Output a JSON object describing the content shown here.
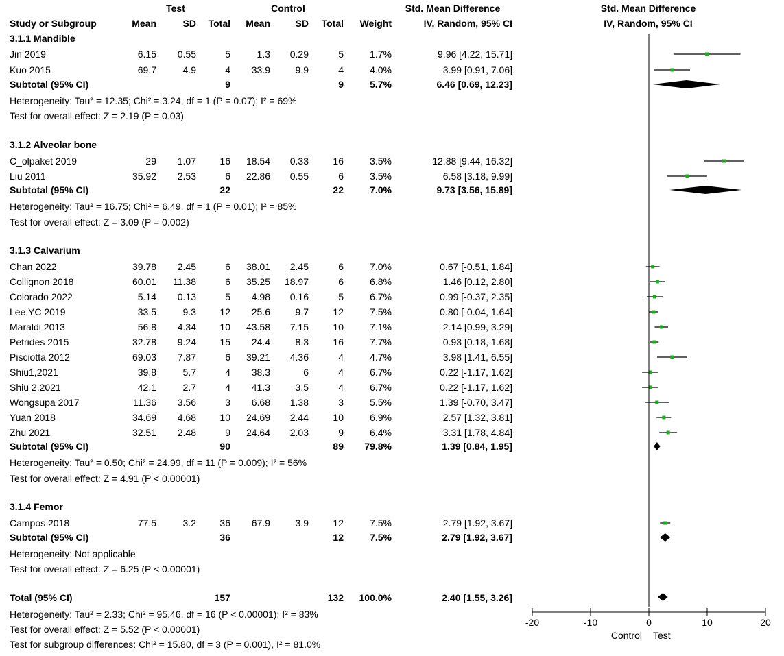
{
  "header": {
    "test": "Test",
    "control": "Control",
    "smd": "Std. Mean Difference",
    "smd_plot": "Std. Mean Difference",
    "cols": [
      "Study or Subgroup",
      "Mean",
      "SD",
      "Total",
      "Mean",
      "SD",
      "Total",
      "Weight",
      "IV, Random, 95% CI"
    ],
    "method_plot": "IV, Random, 95% CI"
  },
  "subgroups": [
    {
      "title": "3.1.1 Mandible",
      "studies": [
        {
          "name": "Jin 2019",
          "tm": "6.15",
          "tsd": "0.55",
          "tn": "5",
          "cm": "1.3",
          "csd": "0.29",
          "cn": "5",
          "w": "1.7%",
          "ci": "9.96 [4.22, 15.71]"
        },
        {
          "name": "Kuo 2015",
          "tm": "69.7",
          "tsd": "4.9",
          "tn": "4",
          "cm": "33.9",
          "csd": "9.9",
          "cn": "4",
          "w": "4.0%",
          "ci": "3.99 [0.91, 7.06]"
        }
      ],
      "subtotal": {
        "label": "Subtotal (95% CI)",
        "tn": "9",
        "cn": "9",
        "w": "5.7%",
        "ci": "6.46 [0.69, 12.23]"
      },
      "het": "Heterogeneity: Tau² = 12.35; Chi² = 3.24, df = 1 (P = 0.07); I² = 69%",
      "effect": "Test for overall effect: Z = 2.19 (P = 0.03)"
    },
    {
      "title": "3.1.2 Alveolar bone",
      "studies": [
        {
          "name": "C_olpaket 2019",
          "tm": "29",
          "tsd": "1.07",
          "tn": "16",
          "cm": "18.54",
          "csd": "0.33",
          "cn": "16",
          "w": "3.5%",
          "ci": "12.88 [9.44, 16.32]"
        },
        {
          "name": "Liu 2011",
          "tm": "35.92",
          "tsd": "2.53",
          "tn": "6",
          "cm": "22.86",
          "csd": "0.55",
          "cn": "6",
          "w": "3.5%",
          "ci": "6.58 [3.18, 9.99]"
        }
      ],
      "subtotal": {
        "label": "Subtotal (95% CI)",
        "tn": "22",
        "cn": "22",
        "w": "7.0%",
        "ci": "9.73 [3.56, 15.89]"
      },
      "het": "Heterogeneity: Tau² = 16.75; Chi² = 6.49, df = 1 (P = 0.01); I² = 85%",
      "effect": "Test for overall effect: Z = 3.09 (P = 0.002)"
    },
    {
      "title": "3.1.3 Calvarium",
      "studies": [
        {
          "name": "Chan 2022",
          "tm": "39.78",
          "tsd": "2.45",
          "tn": "6",
          "cm": "38.01",
          "csd": "2.45",
          "cn": "6",
          "w": "7.0%",
          "ci": "0.67 [-0.51, 1.84]"
        },
        {
          "name": "Collignon 2018",
          "tm": "60.01",
          "tsd": "11.38",
          "tn": "6",
          "cm": "35.25",
          "csd": "18.97",
          "cn": "6",
          "w": "6.8%",
          "ci": "1.46 [0.12, 2.80]"
        },
        {
          "name": "Colorado 2022",
          "tm": "5.14",
          "tsd": "0.13",
          "tn": "5",
          "cm": "4.98",
          "csd": "0.16",
          "cn": "5",
          "w": "6.7%",
          "ci": "0.99 [-0.37, 2.35]"
        },
        {
          "name": "Lee YC 2019",
          "tm": "33.5",
          "tsd": "9.3",
          "tn": "12",
          "cm": "25.6",
          "csd": "9.7",
          "cn": "12",
          "w": "7.5%",
          "ci": "0.80 [-0.04, 1.64]"
        },
        {
          "name": "Maraldi 2013",
          "tm": "56.8",
          "tsd": "4.34",
          "tn": "10",
          "cm": "43.58",
          "csd": "7.15",
          "cn": "10",
          "w": "7.1%",
          "ci": "2.14 [0.99, 3.29]"
        },
        {
          "name": "Petrides 2015",
          "tm": "32.78",
          "tsd": "9.24",
          "tn": "15",
          "cm": "24.4",
          "csd": "8.3",
          "cn": "16",
          "w": "7.7%",
          "ci": "0.93 [0.18, 1.68]"
        },
        {
          "name": "Pisciotta 2012",
          "tm": "69.03",
          "tsd": "7.87",
          "tn": "6",
          "cm": "39.21",
          "csd": "4.36",
          "cn": "4",
          "w": "4.7%",
          "ci": "3.98 [1.41, 6.55]"
        },
        {
          "name": "Shiu1,2021",
          "tm": "39.8",
          "tsd": "5.7",
          "tn": "4",
          "cm": "38.3",
          "csd": "6",
          "cn": "4",
          "w": "6.7%",
          "ci": "0.22 [-1.17, 1.62]"
        },
        {
          "name": "Shiu 2,2021",
          "tm": "42.1",
          "tsd": "2.7",
          "tn": "4",
          "cm": "41.3",
          "csd": "3.5",
          "cn": "4",
          "w": "6.7%",
          "ci": "0.22 [-1.17, 1.62]"
        },
        {
          "name": "Wongsupa 2017",
          "tm": "11.36",
          "tsd": "3.56",
          "tn": "3",
          "cm": "6.68",
          "csd": "1.38",
          "cn": "3",
          "w": "5.5%",
          "ci": "1.39 [-0.70, 3.47]"
        },
        {
          "name": "Yuan 2018",
          "tm": "34.69",
          "tsd": "4.68",
          "tn": "10",
          "cm": "24.69",
          "csd": "2.44",
          "cn": "10",
          "w": "6.9%",
          "ci": "2.57 [1.32, 3.81]"
        },
        {
          "name": "Zhu 2021",
          "tm": "32.51",
          "tsd": "2.48",
          "tn": "9",
          "cm": "24.64",
          "csd": "2.03",
          "cn": "9",
          "w": "6.4%",
          "ci": "3.31 [1.78, 4.84]"
        }
      ],
      "subtotal": {
        "label": "Subtotal (95% CI)",
        "tn": "90",
        "cn": "89",
        "w": "79.8%",
        "ci": "1.39 [0.84, 1.95]"
      },
      "het": "Heterogeneity: Tau² = 0.50; Chi² = 24.99, df = 11 (P = 0.009); I² = 56%",
      "effect": "Test for overall effect: Z = 4.91 (P < 0.00001)"
    },
    {
      "title": "3.1.4 Femor",
      "studies": [
        {
          "name": "Campos 2018",
          "tm": "77.5",
          "tsd": "3.2",
          "tn": "36",
          "cm": "67.9",
          "csd": "3.9",
          "cn": "12",
          "w": "7.5%",
          "ci": "2.79 [1.92, 3.67]"
        }
      ],
      "subtotal": {
        "label": "Subtotal (95% CI)",
        "tn": "36",
        "cn": "12",
        "w": "7.5%",
        "ci": "2.79 [1.92, 3.67]"
      },
      "het": "Heterogeneity: Not applicable",
      "effect": "Test for overall effect: Z = 6.25 (P < 0.00001)"
    }
  ],
  "total": {
    "label": "Total (95% CI)",
    "tn": "157",
    "cn": "132",
    "w": "100.0%",
    "ci": "2.40 [1.55, 3.26]"
  },
  "footer": [
    "Heterogeneity: Tau² = 2.33; Chi² = 95.46, df = 16 (P < 0.00001); I² = 83%",
    "Test for overall effect: Z = 5.52 (P < 0.00001)",
    "Test for subgroup differences: Chi² = 15.80, df = 3 (P = 0.001), I² = 81.0%"
  ],
  "colors": {
    "marker": "#22aa22",
    "ink": "#000000"
  },
  "chart_data": {
    "type": "forest",
    "title": "Std. Mean Difference, IV, Random, 95% CI",
    "xlim": [
      -20,
      20
    ],
    "xticks": [
      "-20",
      "-10",
      "0",
      "10",
      "20"
    ],
    "xlabel_left": "Control",
    "xlabel_right": "Test",
    "studies": [
      {
        "name": "Jin 2019",
        "est": 9.96,
        "lo": 4.22,
        "hi": 15.71
      },
      {
        "name": "Kuo 2015",
        "est": 3.99,
        "lo": 0.91,
        "hi": 7.06
      },
      {
        "name": "C_olpaket 2019",
        "est": 12.88,
        "lo": 9.44,
        "hi": 16.32
      },
      {
        "name": "Liu 2011",
        "est": 6.58,
        "lo": 3.18,
        "hi": 9.99
      },
      {
        "name": "Chan 2022",
        "est": 0.67,
        "lo": -0.51,
        "hi": 1.84
      },
      {
        "name": "Collignon 2018",
        "est": 1.46,
        "lo": 0.12,
        "hi": 2.8
      },
      {
        "name": "Colorado 2022",
        "est": 0.99,
        "lo": -0.37,
        "hi": 2.35
      },
      {
        "name": "Lee YC 2019",
        "est": 0.8,
        "lo": -0.04,
        "hi": 1.64
      },
      {
        "name": "Maraldi 2013",
        "est": 2.14,
        "lo": 0.99,
        "hi": 3.29
      },
      {
        "name": "Petrides 2015",
        "est": 0.93,
        "lo": 0.18,
        "hi": 1.68
      },
      {
        "name": "Pisciotta 2012",
        "est": 3.98,
        "lo": 1.41,
        "hi": 6.55
      },
      {
        "name": "Shiu1,2021",
        "est": 0.22,
        "lo": -1.17,
        "hi": 1.62
      },
      {
        "name": "Shiu 2,2021",
        "est": 0.22,
        "lo": -1.17,
        "hi": 1.62
      },
      {
        "name": "Wongsupa 2017",
        "est": 1.39,
        "lo": -0.7,
        "hi": 3.47
      },
      {
        "name": "Yuan 2018",
        "est": 2.57,
        "lo": 1.32,
        "hi": 3.81
      },
      {
        "name": "Zhu 2021",
        "est": 3.31,
        "lo": 1.78,
        "hi": 4.84
      },
      {
        "name": "Campos 2018",
        "est": 2.79,
        "lo": 1.92,
        "hi": 3.67
      }
    ],
    "diamonds": [
      {
        "name": "Subtotal 3.1.1 Mandible",
        "est": 6.46,
        "lo": 0.69,
        "hi": 12.23
      },
      {
        "name": "Subtotal 3.1.2 Alveolar bone",
        "est": 9.73,
        "lo": 3.56,
        "hi": 15.89
      },
      {
        "name": "Subtotal 3.1.3 Calvarium",
        "est": 1.39,
        "lo": 0.84,
        "hi": 1.95
      },
      {
        "name": "Subtotal 3.1.4 Femor",
        "est": 2.79,
        "lo": 1.92,
        "hi": 3.67
      },
      {
        "name": "Total",
        "est": 2.4,
        "lo": 1.55,
        "hi": 3.26
      }
    ]
  }
}
